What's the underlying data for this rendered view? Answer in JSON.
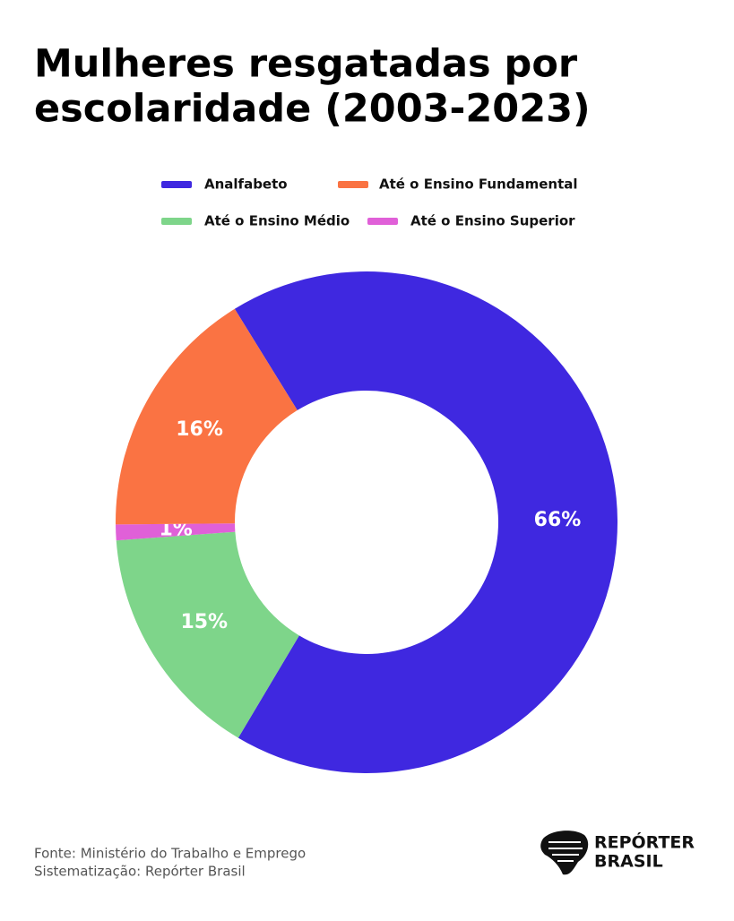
{
  "chart_data": {
    "type": "donut",
    "title_lines": [
      "Mulheres resgatadas por",
      "escolaridade (2003-2023)"
    ],
    "series": [
      {
        "name": "Analfabeto",
        "color": "#3f28e0",
        "values": [
          66
        ],
        "value_labels": [
          "66%"
        ]
      },
      {
        "name": "Até o Ensino Fundamental",
        "color": "#fa7343",
        "values": [
          16
        ],
        "value_labels": [
          "16%"
        ]
      },
      {
        "name": "Até o Ensino Médio",
        "color": "#7ed58a",
        "values": [
          15
        ],
        "value_labels": [
          "15%"
        ]
      },
      {
        "name": "Até o Ensino Superior",
        "color": "#e060d8",
        "values": [
          1
        ],
        "value_labels": [
          "1%"
        ]
      }
    ],
    "source_lines": [
      "Fonte: Ministério do Trabalho e Emprego",
      "Sistematização: Repórter Brasil"
    ],
    "logo_lines": [
      "REPÓRTER",
      "BRASIL"
    ]
  }
}
